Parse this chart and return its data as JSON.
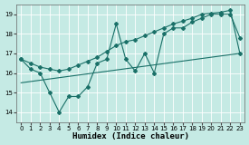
{
  "xlabel": "Humidex (Indice chaleur)",
  "bg_color": "#c5eae4",
  "line_color": "#1a7068",
  "grid_color": "#b0ddd8",
  "xlim": [
    -0.5,
    23.5
  ],
  "ylim": [
    13.5,
    19.5
  ],
  "xticks": [
    0,
    1,
    2,
    3,
    4,
    5,
    6,
    7,
    8,
    9,
    10,
    11,
    12,
    13,
    14,
    15,
    16,
    17,
    18,
    19,
    20,
    21,
    22,
    23
  ],
  "yticks": [
    14,
    15,
    16,
    17,
    18,
    19
  ],
  "line1_x": [
    0,
    1,
    2,
    3,
    4,
    5,
    6,
    7,
    8,
    9,
    10,
    11,
    12,
    13,
    14,
    15,
    16,
    17,
    18,
    19,
    20,
    21,
    22,
    23
  ],
  "line1_y": [
    16.7,
    16.2,
    16.0,
    15.0,
    14.0,
    14.8,
    14.8,
    15.3,
    16.5,
    16.7,
    18.5,
    16.7,
    16.1,
    17.0,
    16.0,
    18.0,
    18.3,
    18.3,
    18.6,
    18.8,
    19.0,
    19.0,
    19.0,
    17.8
  ],
  "line2_x": [
    0,
    1,
    2,
    3,
    4,
    5,
    6,
    7,
    8,
    9,
    10,
    11,
    12,
    13,
    14,
    15,
    16,
    17,
    18,
    19,
    20,
    21,
    22,
    23
  ],
  "line2_y": [
    16.7,
    16.5,
    16.3,
    16.2,
    16.1,
    16.2,
    16.4,
    16.6,
    16.8,
    17.1,
    17.4,
    17.6,
    17.7,
    17.9,
    18.1,
    18.3,
    18.5,
    18.65,
    18.8,
    19.0,
    19.05,
    19.1,
    19.2,
    17.0
  ],
  "line3_x": [
    0,
    23
  ],
  "line3_y": [
    15.5,
    17.0
  ],
  "markersize": 2.0,
  "linewidth": 0.8
}
